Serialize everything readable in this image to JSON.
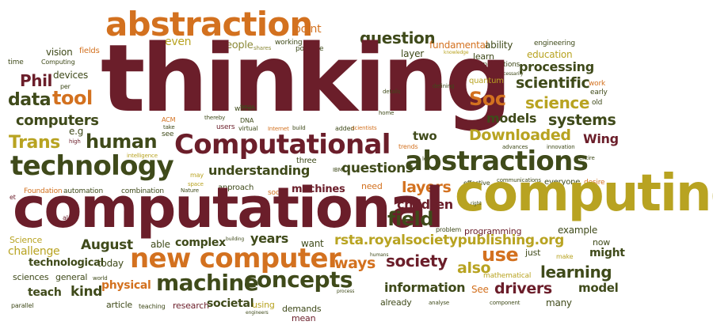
{
  "words": {
    "thinking": "thinking",
    "computational": "computational",
    "computing": "computing",
    "abstraction": "abstraction",
    "abstractions": "abstractions",
    "Computational": "Computational",
    "technology": "technology",
    "new_computer": "new computer",
    "machine": "machine",
    "concepts": "concepts",
    "rsta": "rsta.royalsocietypublishing.org",
    "question": "question",
    "questions": "questions",
    "data": "data",
    "tool": "tool",
    "Phil": "Phil",
    "Soc": "Soc",
    "science": "science",
    "scientific": "scientific",
    "processing": "processing",
    "computers": "computers",
    "human": "human",
    "Trans": "Trans",
    "Downloaded": "Downloaded",
    "systems": "systems",
    "models": "models",
    "Wing": "Wing",
    "two": "two",
    "understanding": "understanding",
    "layers": "layers",
    "field": "field",
    "children": "children",
    "society": "society",
    "use": "use",
    "learning": "learning",
    "information": "information",
    "drivers": "drivers",
    "model": "model",
    "August": "August",
    "years": "years",
    "complex": "complex",
    "physical": "physical",
    "kind": "kind",
    "people": "people",
    "even": "even",
    "point": "point",
    "fields": "fields",
    "vision": "vision",
    "devices": "devices",
    "layer": "layer",
    "ability": "ability",
    "learn": "learn",
    "fundamental": "fundamental",
    "engineering": "engineering",
    "education": "education",
    "work": "work",
    "early": "early",
    "old": "old",
    "eg": "e.g",
    "three": "three",
    "programming": "programming",
    "example": "example",
    "now": "now",
    "might": "might",
    "also": "also",
    "See": "See",
    "teach": "teach",
    "sciences": "sciences",
    "challenge": "challenge",
    "Science": "Science",
    "technological": "technological",
    "today": "today",
    "able": "able",
    "general": "general",
    "article": "article",
    "research": "research",
    "societal": "societal",
    "demands": "demands",
    "mean": "mean",
    "using": "using",
    "already": "already",
    "many": "many",
    "want": "want",
    "ways": "ways",
    "mathematical": "mathematical",
    "just": "just",
    "machines": "machines",
    "need": "need",
    "everyone": "everyone",
    "desire": "desire",
    "automation": "automation",
    "combination": "combination",
    "approach": "approach",
    "social": "social",
    "effective": "effective",
    "Foundation": "Foundation",
    "quantum": "quantum",
    "applications": "applications",
    "time": "time",
    "Computing": "Computing",
    "possible": "possible",
    "working": "working",
    "within": "within",
    "users": "users",
    "ACM": "ACM",
    "DNA": "DNA",
    "virtual": "virtual",
    "et": "et",
    "al": "al",
    "parallel": "parallel",
    "teaching": "teaching",
    "world": "world",
    "process": "process",
    "engineers": "engineers",
    "analyse": "analyse",
    "component": "component",
    "make": "make",
    "humans": "humans",
    "building": "building",
    "problem": "problem",
    "IBM": "IBM",
    "Nature": "Nature",
    "space": "space",
    "may": "may",
    "see": "see",
    "high": "high",
    "take": "take",
    "per": "per",
    "focus": "focus",
    "thereby": "thereby",
    "intelligence": "intelligence",
    "Internet": "Internet",
    "build": "build",
    "added": "added",
    "scientists": "scientists",
    "trends": "trends",
    "let": "let",
    "right": "right",
    "communications": "communications",
    "entire": "entire",
    "innovation": "innovation",
    "advances": "advances",
    "details": "details",
    "home": "home",
    "defining": "defining",
    "shares": "shares",
    "knowledge": "knowledge",
    "necessarily": "necessarily"
  }
}
